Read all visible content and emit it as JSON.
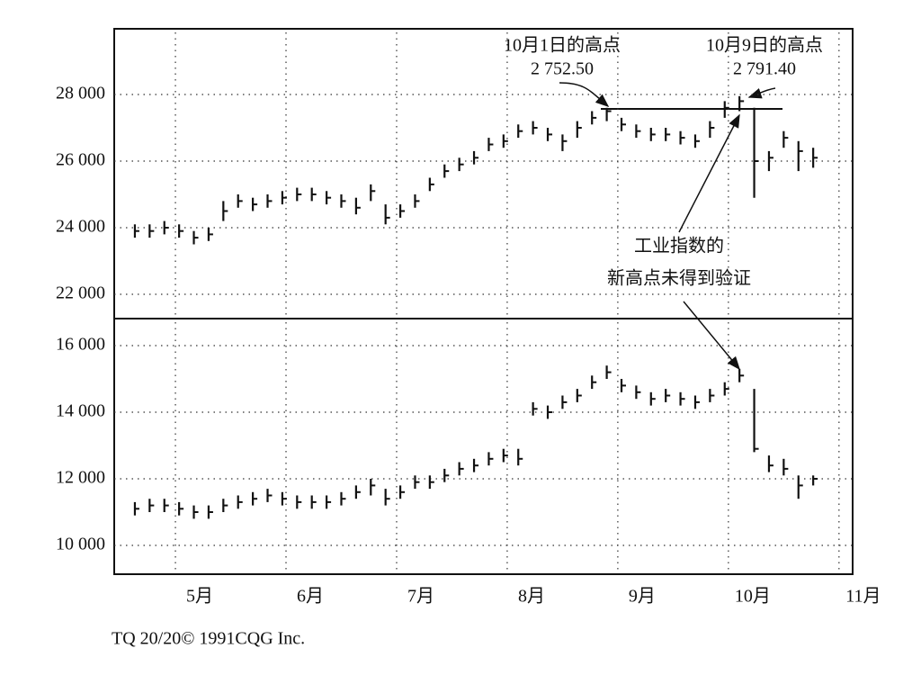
{
  "chart_data": [
    {
      "type": "ohlc",
      "color": "#111111",
      "grid": true,
      "annotations": [
        "10月1日的高点",
        "2 752.50",
        "10月9日的高点",
        "2 791.40",
        "工业指数的",
        "新高点未得到验证"
      ],
      "xlim": [
        13.4,
        213.7
      ],
      "xticks": [
        30,
        60,
        90,
        120,
        150,
        180,
        210
      ],
      "ylim": [
        21270,
        29973
      ],
      "yticks": [
        {
          "value": 22000,
          "label": "22 000"
        },
        {
          "value": 24000,
          "label": "24 000"
        },
        {
          "value": 26000,
          "label": "26 000"
        },
        {
          "value": 28000,
          "label": "28 000"
        }
      ],
      "x": [
        19,
        23,
        27,
        31,
        35,
        39,
        43,
        47,
        51,
        55,
        59,
        63,
        67,
        71,
        75,
        79,
        83,
        87,
        91,
        95,
        99,
        103,
        107,
        111,
        115,
        119,
        123,
        127,
        131,
        135,
        139,
        143,
        147,
        151,
        155,
        159,
        163,
        167,
        171,
        175,
        179,
        183,
        187,
        191,
        195,
        199,
        203
      ],
      "high": [
        24100,
        24100,
        24200,
        24100,
        23900,
        24000,
        24800,
        25000,
        24900,
        25000,
        25100,
        25200,
        25200,
        25100,
        25000,
        24900,
        25300,
        24700,
        24700,
        25000,
        25500,
        25900,
        26100,
        26300,
        26700,
        26800,
        27100,
        27200,
        27000,
        26800,
        27200,
        27500,
        27600,
        27300,
        27100,
        27000,
        27000,
        26900,
        26800,
        27200,
        27800,
        27950,
        27600,
        26300,
        26900,
        26600,
        26400
      ],
      "low": [
        23700,
        23700,
        23800,
        23700,
        23500,
        23600,
        24200,
        24600,
        24500,
        24600,
        24700,
        24800,
        24800,
        24700,
        24600,
        24400,
        24800,
        24100,
        24300,
        24600,
        25100,
        25500,
        25700,
        25900,
        26300,
        26400,
        26700,
        26800,
        26600,
        26300,
        26700,
        27100,
        27200,
        26900,
        26700,
        26600,
        26600,
        26500,
        26400,
        26700,
        27300,
        27500,
        24900,
        25700,
        26400,
        25700,
        25800
      ],
      "close": [
        23900,
        23900,
        24000,
        23900,
        23700,
        23800,
        24500,
        24800,
        24700,
        24800,
        24900,
        25000,
        25000,
        24900,
        24800,
        24600,
        25100,
        24300,
        24500,
        24800,
        25300,
        25700,
        25900,
        26100,
        26500,
        26600,
        26900,
        27000,
        26800,
        26600,
        27000,
        27300,
        27500,
        27100,
        26900,
        26800,
        26800,
        26700,
        26600,
        27000,
        27600,
        27800,
        26000,
        26100,
        26700,
        26300,
        26100
      ]
    },
    {
      "type": "ohlc",
      "color": "#111111",
      "grid": true,
      "source": "TQ 20/20© 1991CQG Inc.",
      "xlim": [
        13.4,
        213.7
      ],
      "xticks": [
        {
          "value": 30,
          "label": "5月"
        },
        {
          "value": 60,
          "label": "6月"
        },
        {
          "value": 90,
          "label": "7月"
        },
        {
          "value": 120,
          "label": "8月"
        },
        {
          "value": 150,
          "label": "9月"
        },
        {
          "value": 180,
          "label": "10月"
        },
        {
          "value": 210,
          "label": "11月"
        }
      ],
      "ylim": [
        9135,
        16811
      ],
      "yticks": [
        {
          "value": 10000,
          "label": "10 000"
        },
        {
          "value": 12000,
          "label": "12 000"
        },
        {
          "value": 14000,
          "label": "14 000"
        },
        {
          "value": 16000,
          "label": "16 000"
        }
      ],
      "x": [
        19,
        23,
        27,
        31,
        35,
        39,
        43,
        47,
        51,
        55,
        59,
        63,
        67,
        71,
        75,
        79,
        83,
        87,
        91,
        95,
        99,
        103,
        107,
        111,
        115,
        119,
        123,
        127,
        131,
        135,
        139,
        143,
        147,
        151,
        155,
        159,
        163,
        167,
        171,
        175,
        179,
        183,
        187,
        191,
        195,
        199,
        203
      ],
      "high": [
        11300,
        11400,
        11400,
        11300,
        11200,
        11200,
        11400,
        11500,
        11600,
        11700,
        11600,
        11500,
        11500,
        11500,
        11600,
        11800,
        12000,
        11700,
        11800,
        12100,
        12100,
        12300,
        12500,
        12600,
        12800,
        12900,
        12900,
        14300,
        14200,
        14500,
        14700,
        15100,
        15400,
        15000,
        14800,
        14600,
        14700,
        14600,
        14500,
        14700,
        14900,
        15300,
        14700,
        12700,
        12600,
        12100,
        12100
      ],
      "low": [
        10900,
        11000,
        11000,
        10900,
        10800,
        10800,
        11000,
        11100,
        11200,
        11300,
        11200,
        11100,
        11100,
        11100,
        11200,
        11400,
        11500,
        11200,
        11400,
        11700,
        11700,
        11900,
        12100,
        12200,
        12400,
        12500,
        12400,
        13900,
        13800,
        14100,
        14300,
        14700,
        15000,
        14600,
        14400,
        14200,
        14300,
        14200,
        14100,
        14300,
        14500,
        14900,
        12800,
        12200,
        12100,
        11400,
        11800
      ],
      "close": [
        11100,
        11200,
        11200,
        11100,
        11000,
        11000,
        11200,
        11300,
        11400,
        11500,
        11400,
        11300,
        11300,
        11300,
        11400,
        11600,
        11800,
        11400,
        11600,
        11900,
        11900,
        12100,
        12300,
        12400,
        12600,
        12700,
        12600,
        14100,
        14000,
        14300,
        14500,
        14900,
        15200,
        14800,
        14600,
        14400,
        14500,
        14400,
        14300,
        14500,
        14700,
        15100,
        12900,
        12400,
        12300,
        11800,
        12000
      ]
    }
  ]
}
